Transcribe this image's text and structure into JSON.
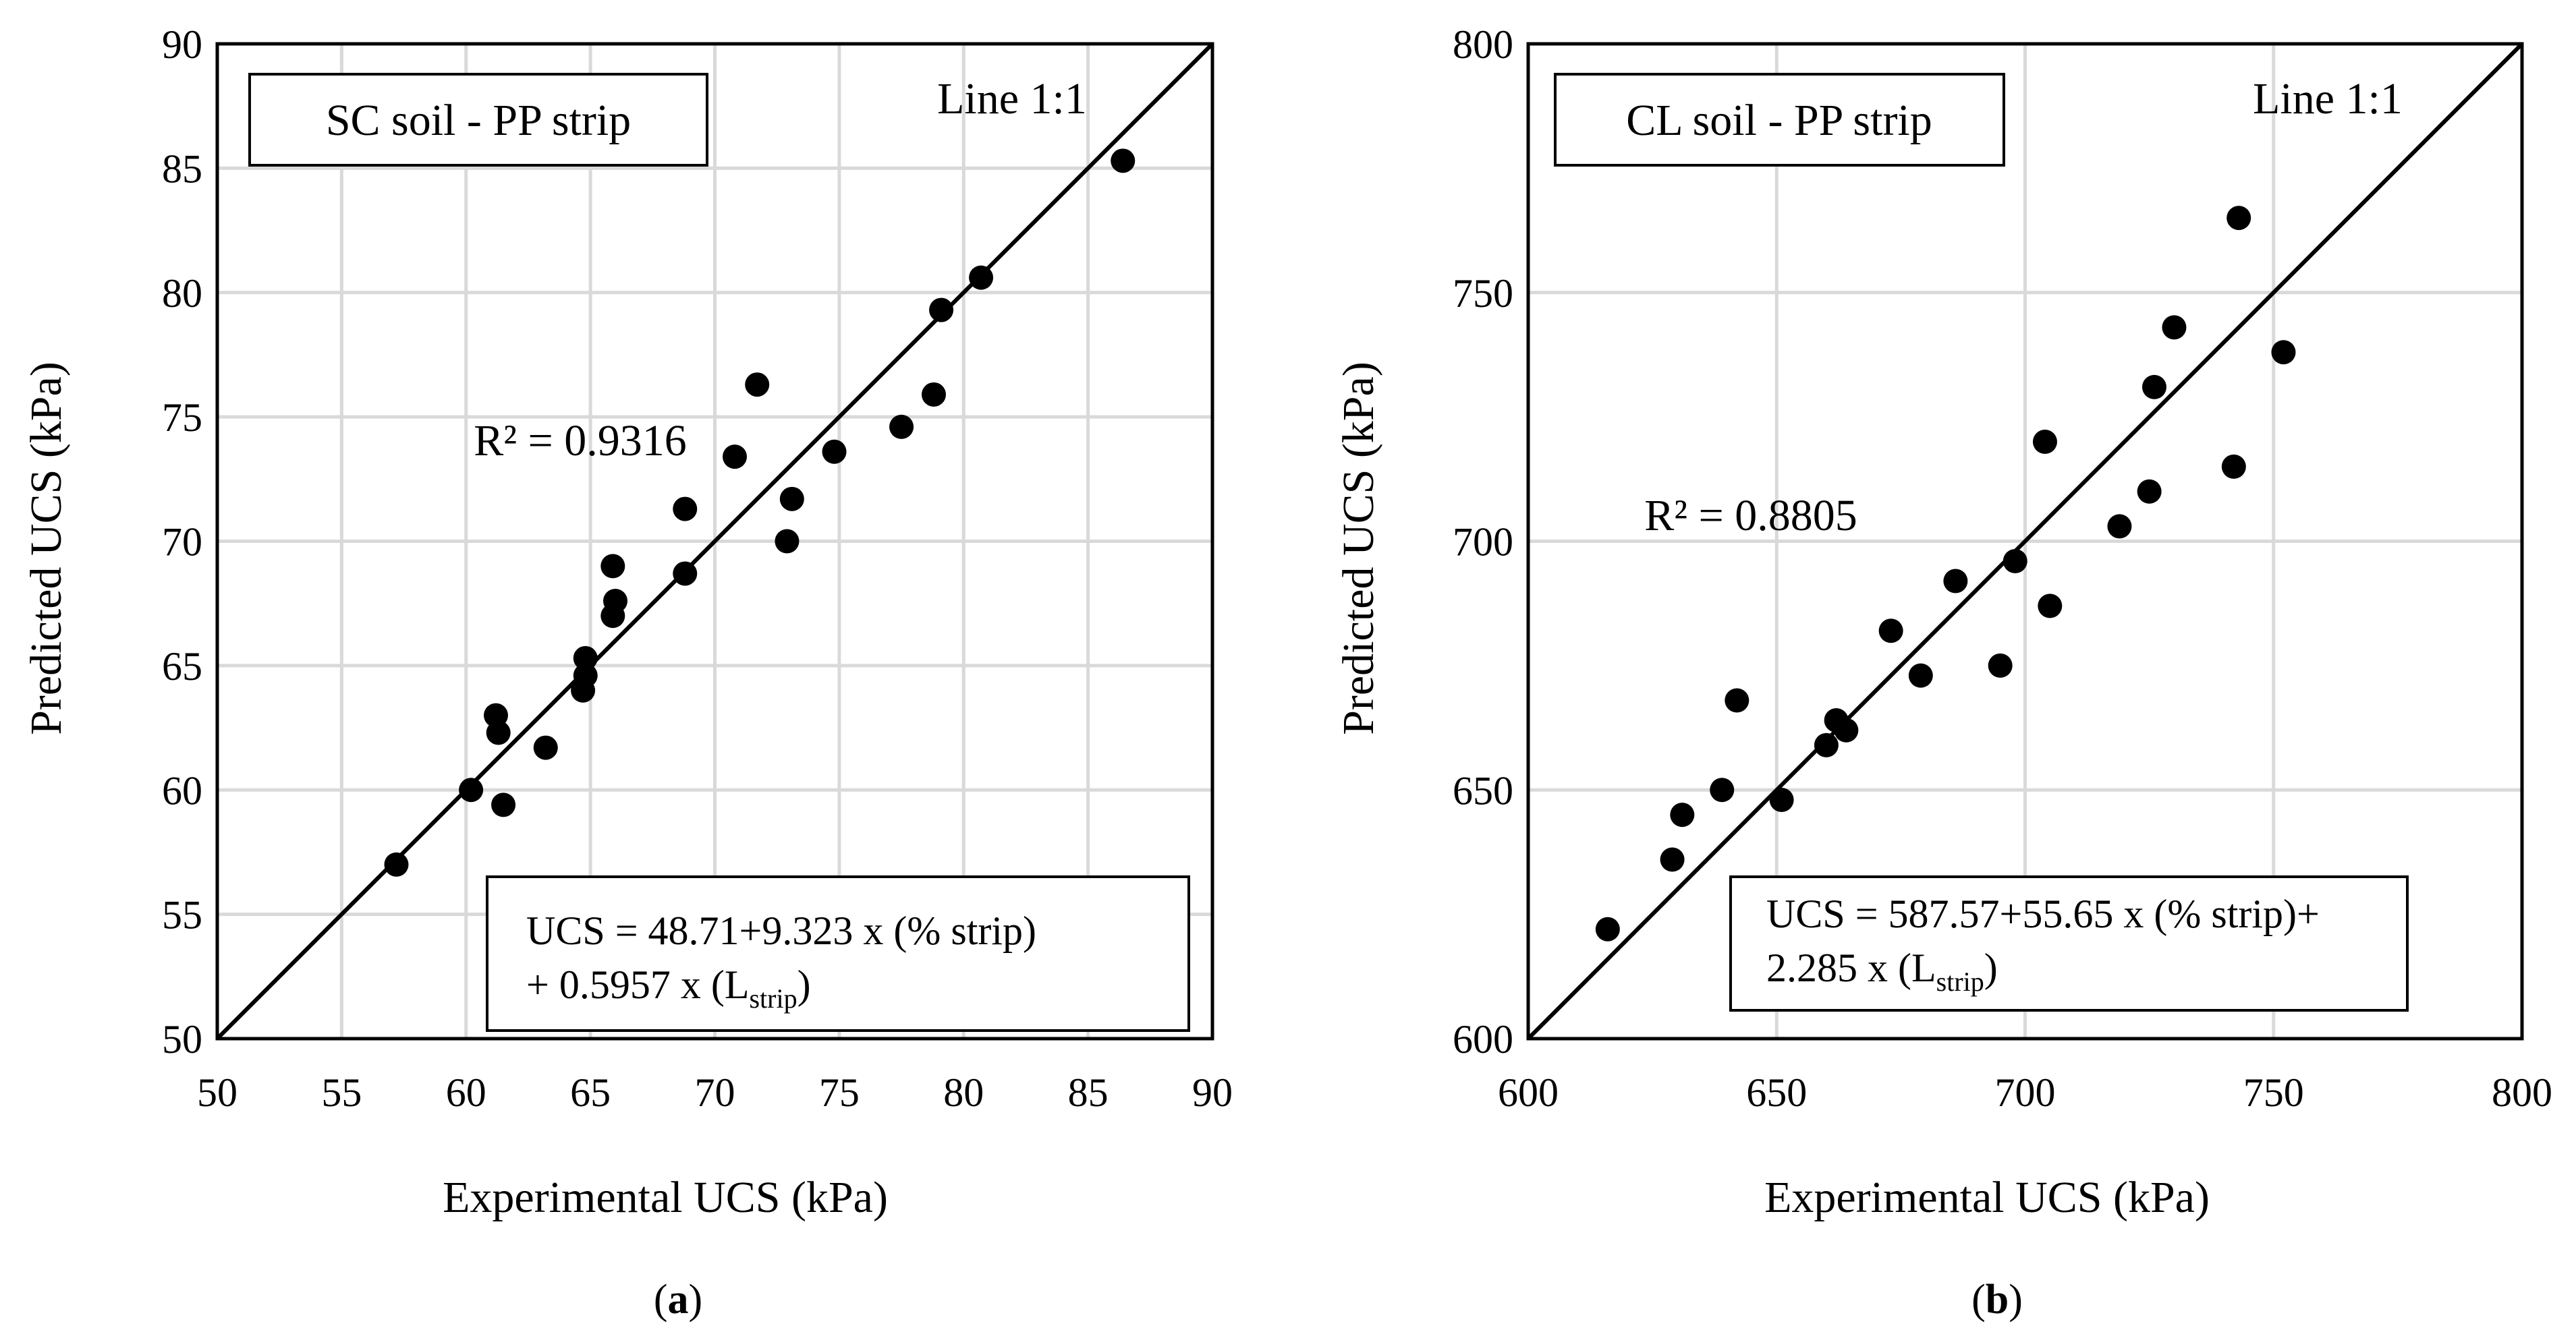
{
  "chart_data": [
    {
      "type": "scatter",
      "panel_label": "(a)",
      "panel_letter": "a",
      "title": "SC soil - PP strip",
      "xlabel": "Experimental UCS (kPa)",
      "ylabel": "Predicted  UCS (kPa)",
      "xlim": [
        50,
        90
      ],
      "ylim": [
        50,
        90
      ],
      "xticks": [
        50,
        55,
        60,
        65,
        70,
        75,
        80,
        85,
        90
      ],
      "yticks": [
        50,
        55,
        60,
        65,
        70,
        75,
        80,
        85,
        90
      ],
      "grid": true,
      "line_label": "Line 1:1",
      "r2_label": "R² = 0.9316",
      "equation": {
        "line1": "UCS = 48.71+9.323 x (% strip)",
        "line2_prefix": "+ 0.5957 x (L",
        "line2_sub": "strip",
        "line2_suffix": ")"
      },
      "series": [
        {
          "name": "data",
          "points": [
            [
              57.2,
              57.0
            ],
            [
              60.2,
              60.0
            ],
            [
              61.2,
              63.0
            ],
            [
              61.3,
              62.3
            ],
            [
              61.5,
              59.4
            ],
            [
              63.2,
              61.7
            ],
            [
              64.7,
              64.0
            ],
            [
              64.8,
              64.6
            ],
            [
              64.8,
              65.3
            ],
            [
              65.9,
              67.0
            ],
            [
              66.0,
              67.6
            ],
            [
              65.9,
              69.0
            ],
            [
              68.8,
              68.7
            ],
            [
              68.8,
              71.3
            ],
            [
              70.8,
              73.4
            ],
            [
              71.7,
              76.3
            ],
            [
              72.9,
              70.0
            ],
            [
              73.1,
              71.7
            ],
            [
              74.8,
              73.6
            ],
            [
              77.5,
              74.6
            ],
            [
              78.8,
              75.9
            ],
            [
              79.1,
              79.3
            ],
            [
              80.7,
              80.6
            ],
            [
              86.4,
              85.3
            ]
          ]
        }
      ]
    },
    {
      "type": "scatter",
      "panel_label": "(b)",
      "panel_letter": "b",
      "title": "CL soil - PP strip",
      "xlabel": "Experimental UCS (kPa)",
      "ylabel": "Predicted  UCS (kPa)",
      "xlim": [
        600,
        800
      ],
      "ylim": [
        600,
        800
      ],
      "xticks": [
        600,
        650,
        700,
        750,
        800
      ],
      "yticks": [
        600,
        650,
        700,
        750,
        800
      ],
      "grid": true,
      "line_label": "Line 1:1",
      "r2_label": "R² = 0.8805",
      "equation": {
        "line1": "UCS = 587.57+55.65 x (% strip)+",
        "line2_prefix": "2.285 x (L",
        "line2_sub": "strip",
        "line2_suffix": ")"
      },
      "series": [
        {
          "name": "data",
          "points": [
            [
              616,
              622
            ],
            [
              629,
              636
            ],
            [
              631,
              645
            ],
            [
              639,
              650
            ],
            [
              642,
              668
            ],
            [
              651,
              648
            ],
            [
              660,
              659
            ],
            [
              662,
              664
            ],
            [
              664,
              662
            ],
            [
              673,
              682
            ],
            [
              679,
              673
            ],
            [
              686,
              692
            ],
            [
              695,
              675
            ],
            [
              698,
              696
            ],
            [
              704,
              720
            ],
            [
              705,
              687
            ],
            [
              719,
              703
            ],
            [
              725,
              710
            ],
            [
              726,
              731
            ],
            [
              730,
              743
            ],
            [
              742,
              715
            ],
            [
              743,
              765
            ],
            [
              752,
              738
            ]
          ]
        }
      ]
    }
  ]
}
